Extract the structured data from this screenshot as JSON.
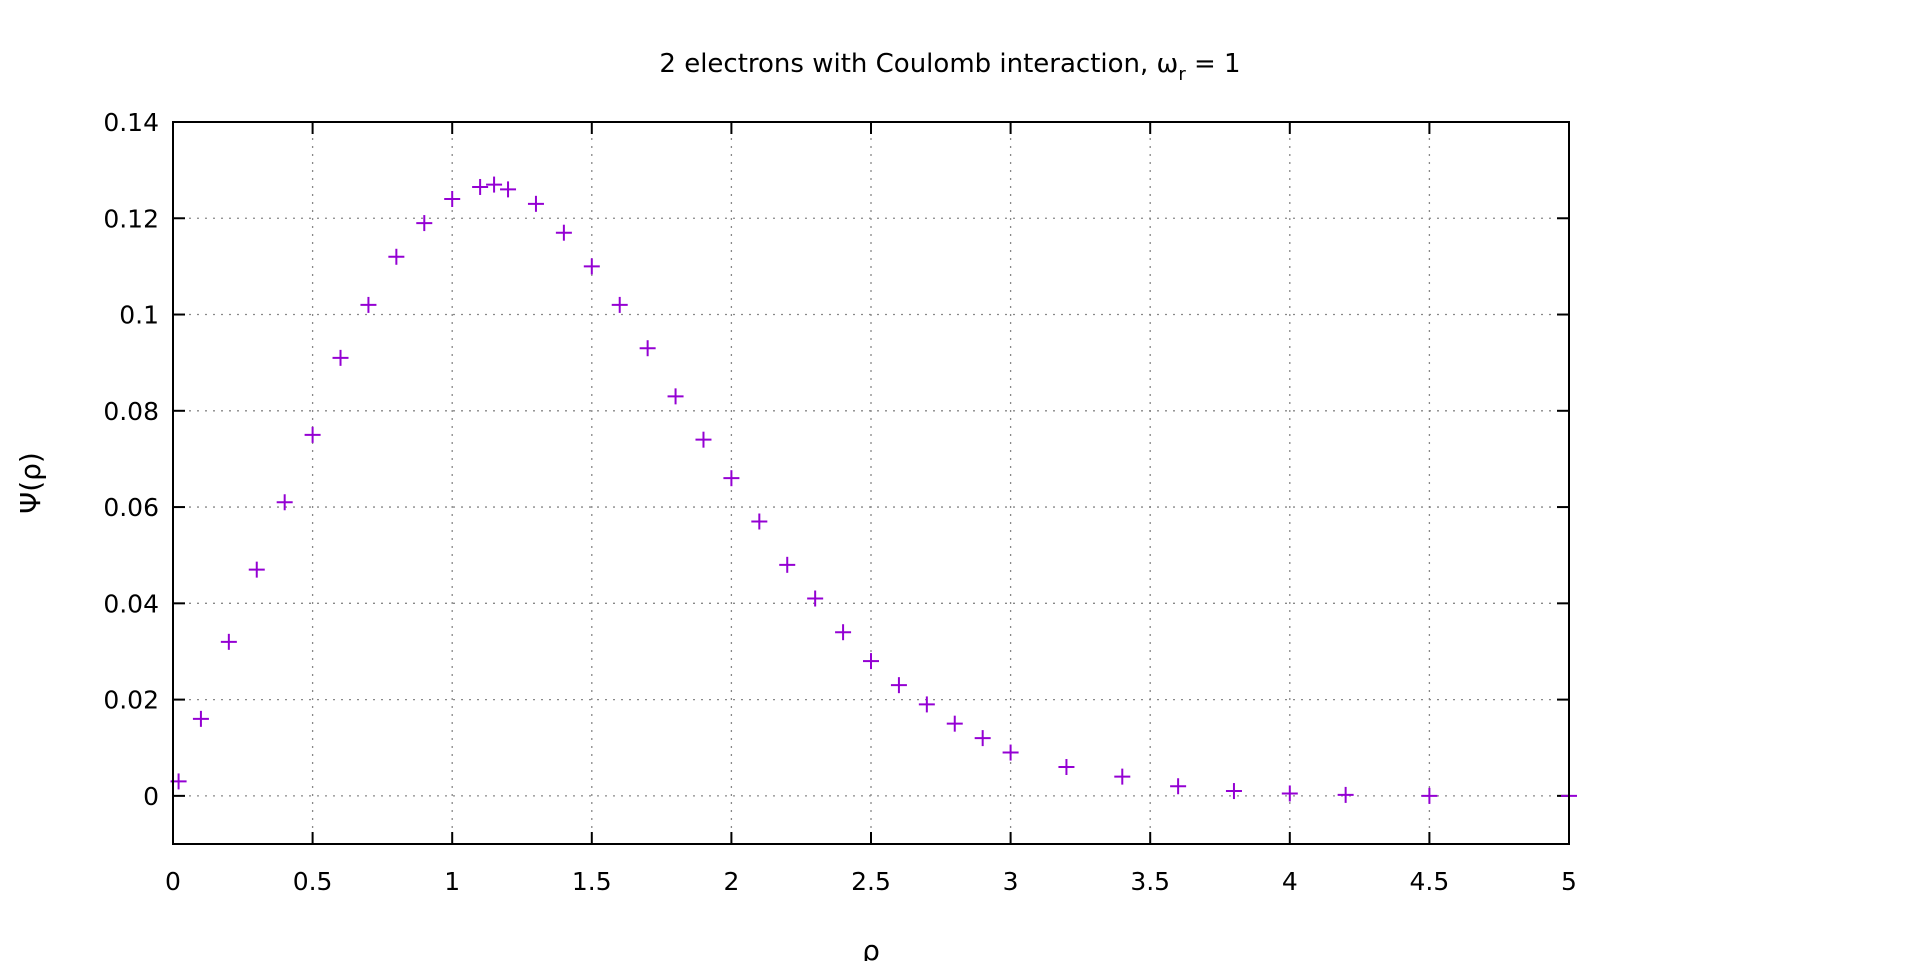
{
  "chart_data": {
    "type": "scatter",
    "title": {
      "main": "2 electrons with Coulomb interaction, ω",
      "sub": "r",
      "tail": " = 1"
    },
    "xlabel": "ρ",
    "ylabel": "Ψ(ρ)",
    "xlim": [
      0,
      5
    ],
    "ylim": [
      -0.01,
      0.14
    ],
    "xticks": [
      0,
      0.5,
      1,
      1.5,
      2,
      2.5,
      3,
      3.5,
      4,
      4.5,
      5
    ],
    "xtick_labels": [
      "0",
      "0.5",
      "1",
      "1.5",
      "2",
      "2.5",
      "3",
      "3.5",
      "4",
      "4.5",
      "5"
    ],
    "yticks": [
      0,
      0.02,
      0.04,
      0.06,
      0.08,
      0.1,
      0.12,
      0.14
    ],
    "ytick_labels": [
      "0",
      "0.02",
      "0.04",
      "0.06",
      "0.08",
      "0.1",
      "0.12",
      "0.14"
    ],
    "grid": true,
    "legend": "none",
    "marker": "plus",
    "series_color": "#9400d3",
    "series": [
      {
        "x": [
          0.02,
          0.1,
          0.2,
          0.3,
          0.4,
          0.5,
          0.6,
          0.7,
          0.8,
          0.9,
          1.0,
          1.1,
          1.15,
          1.2,
          1.3,
          1.4,
          1.5,
          1.6,
          1.7,
          1.8,
          1.9,
          2.0,
          2.1,
          2.2,
          2.3,
          2.4,
          2.5,
          2.6,
          2.7,
          2.8,
          2.9,
          3.0,
          3.2,
          3.4,
          3.6,
          3.8,
          4.0,
          4.2,
          4.5,
          5.0
        ],
        "y": [
          0.003,
          0.016,
          0.032,
          0.047,
          0.061,
          0.075,
          0.091,
          0.102,
          0.112,
          0.119,
          0.124,
          0.1265,
          0.127,
          0.126,
          0.123,
          0.117,
          0.11,
          0.102,
          0.093,
          0.083,
          0.074,
          0.066,
          0.057,
          0.048,
          0.041,
          0.034,
          0.028,
          0.023,
          0.019,
          0.015,
          0.012,
          0.009,
          0.006,
          0.004,
          0.002,
          0.001,
          0.0005,
          0.0002,
          0.0,
          0.0
        ]
      }
    ]
  }
}
